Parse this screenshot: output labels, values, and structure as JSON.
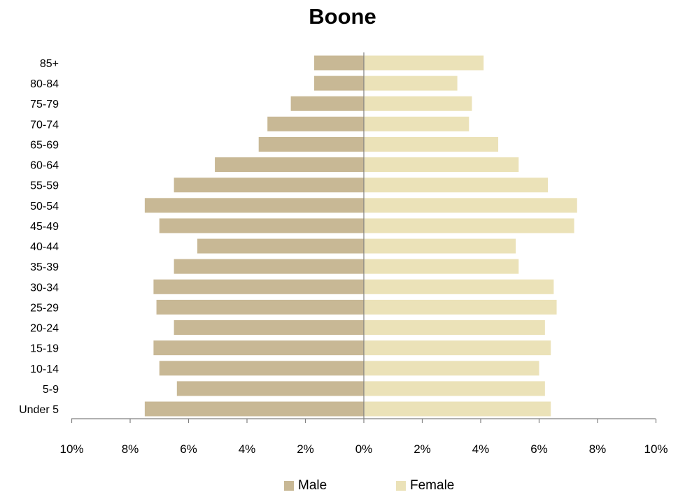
{
  "chart_data": {
    "type": "bar",
    "orientation": "horizontal-population-pyramid",
    "title": "Boone",
    "categories": [
      "Under 5",
      "5-9",
      "10-14",
      "15-19",
      "20-24",
      "25-29",
      "30-34",
      "35-39",
      "40-44",
      "45-49",
      "50-54",
      "55-59",
      "60-64",
      "65-69",
      "70-74",
      "75-79",
      "80-84",
      "85+"
    ],
    "series": [
      {
        "name": "Male",
        "color": "#c8b895",
        "values": [
          7.5,
          6.4,
          7.0,
          7.2,
          6.5,
          7.1,
          7.2,
          6.5,
          5.7,
          7.0,
          7.5,
          6.5,
          5.1,
          3.6,
          3.3,
          2.5,
          1.7,
          1.7
        ]
      },
      {
        "name": "Female",
        "color": "#ebe2b8",
        "values": [
          6.4,
          6.2,
          6.0,
          6.4,
          6.2,
          6.6,
          6.5,
          5.3,
          5.2,
          7.2,
          7.3,
          6.3,
          5.3,
          4.6,
          3.6,
          3.7,
          3.2,
          4.1
        ]
      }
    ],
    "xlim": [
      -10,
      10
    ],
    "xticks": [
      -10,
      -8,
      -6,
      -4,
      -2,
      0,
      2,
      4,
      6,
      8,
      10
    ],
    "xtick_labels": [
      "10%",
      "8%",
      "6%",
      "4%",
      "2%",
      "0%",
      "2%",
      "4%",
      "6%",
      "8%",
      "10%"
    ],
    "xlabel": "",
    "ylabel": "",
    "grid": false,
    "legend_position": "bottom"
  }
}
